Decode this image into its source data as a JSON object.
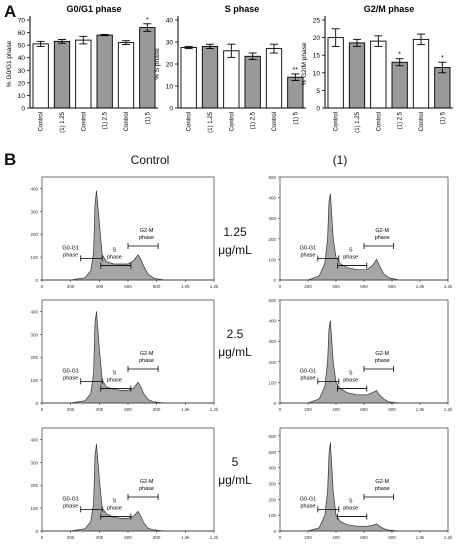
{
  "panel_a_label": "A",
  "panel_b_label": "B",
  "panel_b": {
    "column_titles": [
      "Control",
      "(1)"
    ],
    "rows": [
      {
        "dose_value": "1.25",
        "dose_unit": "μg/mL"
      },
      {
        "dose_value": "2.5",
        "dose_unit": "μg/mL"
      },
      {
        "dose_value": "5",
        "dose_unit": "μg/mL"
      }
    ]
  },
  "chart_data": [
    {
      "type": "bar",
      "title": "G0/G1 phase",
      "ylabel": "% G0/G1 phase",
      "categories": [
        "Control",
        "(1) 1.25",
        "Control",
        "(1) 2.5",
        "Control",
        "(1) 5"
      ],
      "values": [
        51,
        53,
        54,
        58,
        52,
        64
      ],
      "errors": [
        2,
        1.5,
        3,
        0.5,
        1.5,
        3
      ],
      "bar_fills": [
        "#ffffff",
        "#999999",
        "#ffffff",
        "#999999",
        "#ffffff",
        "#999999"
      ],
      "significance": [
        "",
        "",
        "",
        "",
        "",
        "*"
      ],
      "ylim": [
        0,
        70
      ],
      "yticks": [
        0,
        10,
        20,
        30,
        40,
        50,
        60,
        70
      ]
    },
    {
      "type": "bar",
      "title": "S phase",
      "ylabel": "% S phase",
      "categories": [
        "Control",
        "(1) 1.25",
        "Control",
        "(1) 2.5",
        "Control",
        "(1) 5"
      ],
      "values": [
        27.5,
        28,
        26,
        23.5,
        27,
        14
      ],
      "errors": [
        0.5,
        1,
        3,
        1.5,
        2,
        1.5
      ],
      "bar_fills": [
        "#ffffff",
        "#999999",
        "#ffffff",
        "#999999",
        "#ffffff",
        "#999999"
      ],
      "significance": [
        "",
        "",
        "",
        "",
        "",
        "**"
      ],
      "ylim": [
        0,
        40
      ],
      "yticks": [
        0,
        10,
        20,
        30,
        40
      ]
    },
    {
      "type": "bar",
      "title": "G2/M phase",
      "ylabel": "% G2/M phase",
      "categories": [
        "Control",
        "(1) 1.25",
        "Control",
        "(1) 2.5",
        "Control",
        "(1) 5"
      ],
      "values": [
        20,
        18.5,
        19,
        13,
        19.5,
        11.5
      ],
      "errors": [
        2.5,
        1,
        1.5,
        1,
        1.5,
        1.5
      ],
      "bar_fills": [
        "#ffffff",
        "#999999",
        "#ffffff",
        "#999999",
        "#ffffff",
        "#999999"
      ],
      "significance": [
        "",
        "",
        "",
        "*",
        "",
        "*"
      ],
      "ylim": [
        0,
        25
      ],
      "yticks": [
        0,
        5,
        10,
        15,
        20,
        25
      ]
    },
    {
      "type": "area",
      "title": "",
      "sample": "Control",
      "dose": "1.25",
      "x": [
        0,
        200,
        300,
        340,
        360,
        370,
        380,
        400,
        420,
        450,
        500,
        550,
        600,
        640,
        670,
        690,
        710,
        740,
        780,
        850,
        1000,
        1200
      ],
      "y": [
        0,
        0,
        10,
        40,
        120,
        330,
        390,
        250,
        110,
        80,
        70,
        70,
        70,
        85,
        110,
        90,
        60,
        25,
        8,
        0,
        0,
        0
      ],
      "xticks": [
        "0",
        "200",
        "400",
        "600",
        "800",
        "1.0k",
        "1.2k"
      ],
      "yticks": [
        0,
        100,
        200,
        300,
        400
      ],
      "ylim": [
        0,
        450
      ],
      "gate_labels": [
        "G0-G1 phase",
        "S phase",
        "G2-M phase"
      ]
    },
    {
      "type": "area",
      "title": "",
      "sample": "(1)",
      "dose": "1.25",
      "x": [
        0,
        200,
        280,
        320,
        340,
        350,
        360,
        380,
        400,
        430,
        480,
        550,
        620,
        660,
        690,
        710,
        740,
        780,
        850,
        1000,
        1200
      ],
      "y": [
        0,
        0,
        20,
        80,
        200,
        380,
        420,
        200,
        110,
        80,
        60,
        50,
        50,
        70,
        100,
        70,
        30,
        10,
        0,
        0,
        0
      ],
      "xticks": [
        "0",
        "200",
        "400",
        "600",
        "800",
        "1.0k",
        "1.2k"
      ],
      "yticks": [
        0,
        100,
        200,
        300,
        400,
        500
      ],
      "ylim": [
        0,
        500
      ],
      "gate_labels": [
        "G0-G1 phase",
        "S phase",
        "G2-M phase"
      ]
    },
    {
      "type": "area",
      "title": "",
      "sample": "Control",
      "dose": "2.5",
      "x": [
        0,
        200,
        300,
        340,
        360,
        370,
        380,
        400,
        420,
        450,
        500,
        550,
        600,
        640,
        670,
        690,
        710,
        740,
        780,
        850,
        1000,
        1200
      ],
      "y": [
        0,
        0,
        10,
        40,
        130,
        350,
        400,
        240,
        100,
        70,
        60,
        55,
        55,
        65,
        90,
        70,
        40,
        15,
        5,
        0,
        0,
        0
      ],
      "xticks": [
        "0",
        "200",
        "400",
        "600",
        "800",
        "1.0k",
        "1.2k"
      ],
      "yticks": [
        0,
        100,
        200,
        300,
        400
      ],
      "ylim": [
        0,
        450
      ],
      "gate_labels": [
        "G0-G1 phase",
        "S phase",
        "G2-M phase"
      ]
    },
    {
      "type": "area",
      "title": "",
      "sample": "(1)",
      "dose": "2.5",
      "x": [
        0,
        200,
        280,
        320,
        340,
        350,
        360,
        380,
        400,
        430,
        480,
        550,
        620,
        660,
        690,
        710,
        740,
        780,
        850,
        1000,
        1200
      ],
      "y": [
        0,
        0,
        20,
        80,
        200,
        360,
        400,
        200,
        100,
        70,
        50,
        40,
        40,
        50,
        60,
        40,
        20,
        5,
        0,
        0,
        0
      ],
      "xticks": [
        "0",
        "200",
        "400",
        "600",
        "800",
        "1.0k",
        "1.2k"
      ],
      "yticks": [
        0,
        100,
        200,
        300,
        400,
        500
      ],
      "ylim": [
        0,
        500
      ],
      "gate_labels": [
        "G0-G1 phase",
        "S phase",
        "G2-M phase"
      ]
    },
    {
      "type": "area",
      "title": "",
      "sample": "Control",
      "dose": "5",
      "x": [
        0,
        200,
        300,
        340,
        360,
        370,
        380,
        400,
        420,
        450,
        500,
        550,
        600,
        640,
        670,
        690,
        710,
        740,
        780,
        850,
        1000,
        1200
      ],
      "y": [
        0,
        0,
        10,
        40,
        120,
        330,
        380,
        230,
        100,
        75,
        60,
        55,
        55,
        65,
        85,
        65,
        35,
        12,
        5,
        0,
        0,
        0
      ],
      "xticks": [
        "0",
        "200",
        "400",
        "600",
        "800",
        "1.0k",
        "1.2k"
      ],
      "yticks": [
        0,
        100,
        200,
        300,
        400
      ],
      "ylim": [
        0,
        450
      ],
      "gate_labels": [
        "G0-G1 phase",
        "S phase",
        "G2-M phase"
      ]
    },
    {
      "type": "area",
      "title": "",
      "sample": "(1)",
      "dose": "5",
      "x": [
        0,
        200,
        280,
        320,
        340,
        350,
        360,
        380,
        400,
        430,
        480,
        550,
        620,
        660,
        690,
        710,
        740,
        780,
        850,
        1000,
        1200
      ],
      "y": [
        0,
        0,
        20,
        100,
        250,
        480,
        560,
        250,
        100,
        60,
        40,
        30,
        30,
        35,
        45,
        30,
        15,
        5,
        0,
        0,
        0
      ],
      "xticks": [
        "0",
        "200",
        "400",
        "600",
        "800",
        "1.0k",
        "1.2k"
      ],
      "yticks": [
        0,
        100,
        200,
        300,
        400,
        500,
        600
      ],
      "ylim": [
        0,
        650
      ],
      "gate_labels": [
        "G0-G1 phase",
        "S phase",
        "G2-M phase"
      ]
    }
  ]
}
